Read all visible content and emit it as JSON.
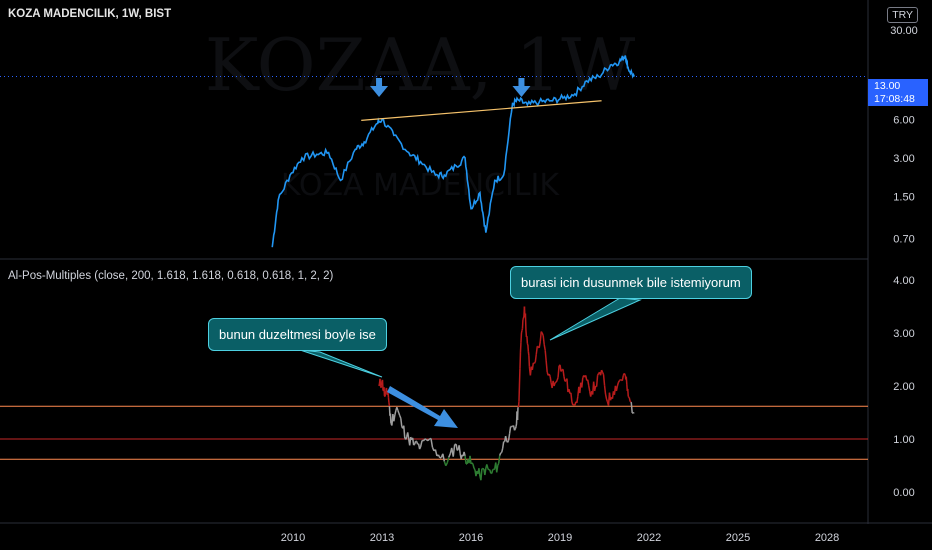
{
  "header": {
    "symbol_line": "KOZA MADENCILIK, 1W, BIST",
    "currency": "TRY"
  },
  "indicator": {
    "title": "Al-Pos-Multiples (close, 200, 1.618, 1.618, 0.618, 0.618, 1, 2, 2)"
  },
  "last_price": {
    "value": "13.00",
    "countdown": "17:08:48"
  },
  "annotations": {
    "callout1": "bunun duzeltmesi boyle ise",
    "callout2": "burasi icin dusunmek bile istemiyorum"
  },
  "colors": {
    "price_line": "#2196f3",
    "trend_line": "#f5c26b",
    "multiple_high": "#b71c1c",
    "multiple_mid": "#9e9e9e",
    "multiple_low": "#2e7d32",
    "level_orange": "#ff8a50",
    "level_red": "#c62828",
    "callout_bg": "#0a5f66",
    "arrow": "#3d8fe0"
  },
  "chart_data": [
    {
      "type": "line",
      "title": "KOZA MADENCILIK, 1W, BIST",
      "y_scale": "log",
      "x_ticks": [
        "2010",
        "2013",
        "2016",
        "2019",
        "2022",
        "2025",
        "2028"
      ],
      "y_ticks": [
        "30.00",
        "13.00",
        "6.00",
        "3.00",
        "1.50",
        "0.70"
      ],
      "series": [
        {
          "x": [
            2009.3,
            2009.5,
            2009.9,
            2010.3,
            2010.8,
            2011.2,
            2011.6,
            2012.1,
            2012.4,
            2012.8,
            2013.0,
            2013.4,
            2013.9,
            2014.3,
            2014.8,
            2015.1,
            2015.5,
            2015.8,
            2016.0,
            2016.3,
            2016.5,
            2016.8,
            2017.1,
            2017.4,
            2017.6,
            2017.9,
            2018.3,
            2018.7,
            2019.1,
            2019.5,
            2019.9,
            2020.3,
            2020.7,
            2021.0,
            2021.2,
            2021.3,
            2021.5
          ],
          "y": [
            0.6,
            1.4,
            2.2,
            3.0,
            3.2,
            3.3,
            2.0,
            3.5,
            4.0,
            5.5,
            6.0,
            4.5,
            3.3,
            2.8,
            2.2,
            2.2,
            2.6,
            3.0,
            1.2,
            1.6,
            0.78,
            2.0,
            2.2,
            8.0,
            8.5,
            7.8,
            8.2,
            8.4,
            8.8,
            9.5,
            12.0,
            13.0,
            16.0,
            17.0,
            19.0,
            15.0,
            13.0
          ]
        }
      ],
      "annotations": [
        "down arrow 2013",
        "down arrow 2017.7"
      ],
      "trend_line": {
        "x": [
          2012.3,
          2020.4
        ],
        "y": [
          5.9,
          8.4
        ]
      }
    },
    {
      "type": "line",
      "title": "Al-Pos-Multiples (close, 200, 1.618, 1.618, 0.618, 0.618, 1, 2, 2)",
      "y_ticks": [
        "4.00",
        "3.00",
        "2.00",
        "1.00",
        "0.00"
      ],
      "ylim": [
        -0.3,
        4.2
      ],
      "levels": [
        1.618,
        1.0,
        0.618
      ],
      "series": [
        {
          "x": [
            2012.9,
            2013.0,
            2013.1,
            2013.2,
            2013.3,
            2013.5,
            2013.7,
            2013.9,
            2014.1,
            2014.3,
            2014.6,
            2014.9,
            2015.2,
            2015.5,
            2015.7,
            2015.9,
            2016.1,
            2016.3,
            2016.5,
            2016.7,
            2016.9,
            2017.1,
            2017.3,
            2017.5,
            2017.6,
            2017.7,
            2017.8,
            2017.9,
            2018.0,
            2018.2,
            2018.4,
            2018.6,
            2018.8,
            2019.0,
            2019.2,
            2019.4,
            2019.6,
            2019.8,
            2020.0,
            2020.2,
            2020.4,
            2020.6,
            2020.8,
            2021.0,
            2021.2,
            2021.3,
            2021.5
          ],
          "y": [
            2.0,
            2.1,
            1.8,
            1.9,
            1.3,
            1.6,
            1.2,
            1.0,
            0.9,
            0.85,
            1.0,
            0.7,
            0.55,
            0.9,
            0.7,
            0.62,
            0.45,
            0.3,
            0.45,
            0.35,
            0.5,
            0.95,
            1.1,
            1.2,
            1.6,
            3.0,
            3.5,
            2.8,
            2.2,
            2.6,
            3.0,
            2.2,
            2.0,
            2.4,
            2.1,
            1.7,
            1.8,
            2.2,
            1.9,
            2.0,
            2.3,
            1.7,
            1.9,
            2.1,
            2.2,
            1.8,
            1.5
          ]
        }
      ]
    }
  ]
}
